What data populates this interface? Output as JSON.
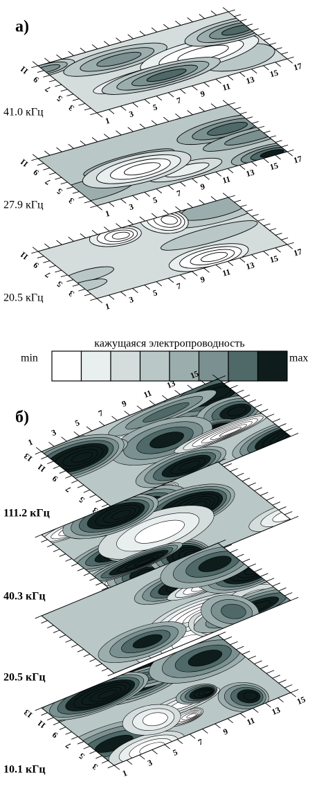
{
  "panel_a": {
    "label": "а)",
    "x_ticks": [
      "1",
      "3",
      "5",
      "7",
      "9",
      "11",
      "13",
      "15",
      "17"
    ],
    "y_ticks": [
      "3",
      "5",
      "7",
      "9",
      "11"
    ],
    "maps": [
      {
        "frequency": "41.0 кГц"
      },
      {
        "frequency": "27.9 кГц"
      },
      {
        "frequency": "20.5 кГц"
      }
    ]
  },
  "legend": {
    "title": "кажущаяся электропроводность",
    "min": "min",
    "max": "max",
    "colors": [
      "#ffffff",
      "#e9eeee",
      "#d4dcdc",
      "#bac7c7",
      "#9cadad",
      "#7b9090",
      "#4f6868",
      "#0e1c1c"
    ]
  },
  "panel_b": {
    "label": "б)",
    "x_ticks": [
      "1",
      "3",
      "5",
      "7",
      "9",
      "11",
      "13",
      "15"
    ],
    "y_ticks": [
      "3",
      "5",
      "7",
      "9",
      "11",
      "13"
    ],
    "maps": [
      {
        "frequency": "111.2 кГц"
      },
      {
        "frequency": "40.3 кГц"
      },
      {
        "frequency": "20.5 кГц"
      },
      {
        "frequency": "10.1 кГц"
      }
    ]
  }
}
